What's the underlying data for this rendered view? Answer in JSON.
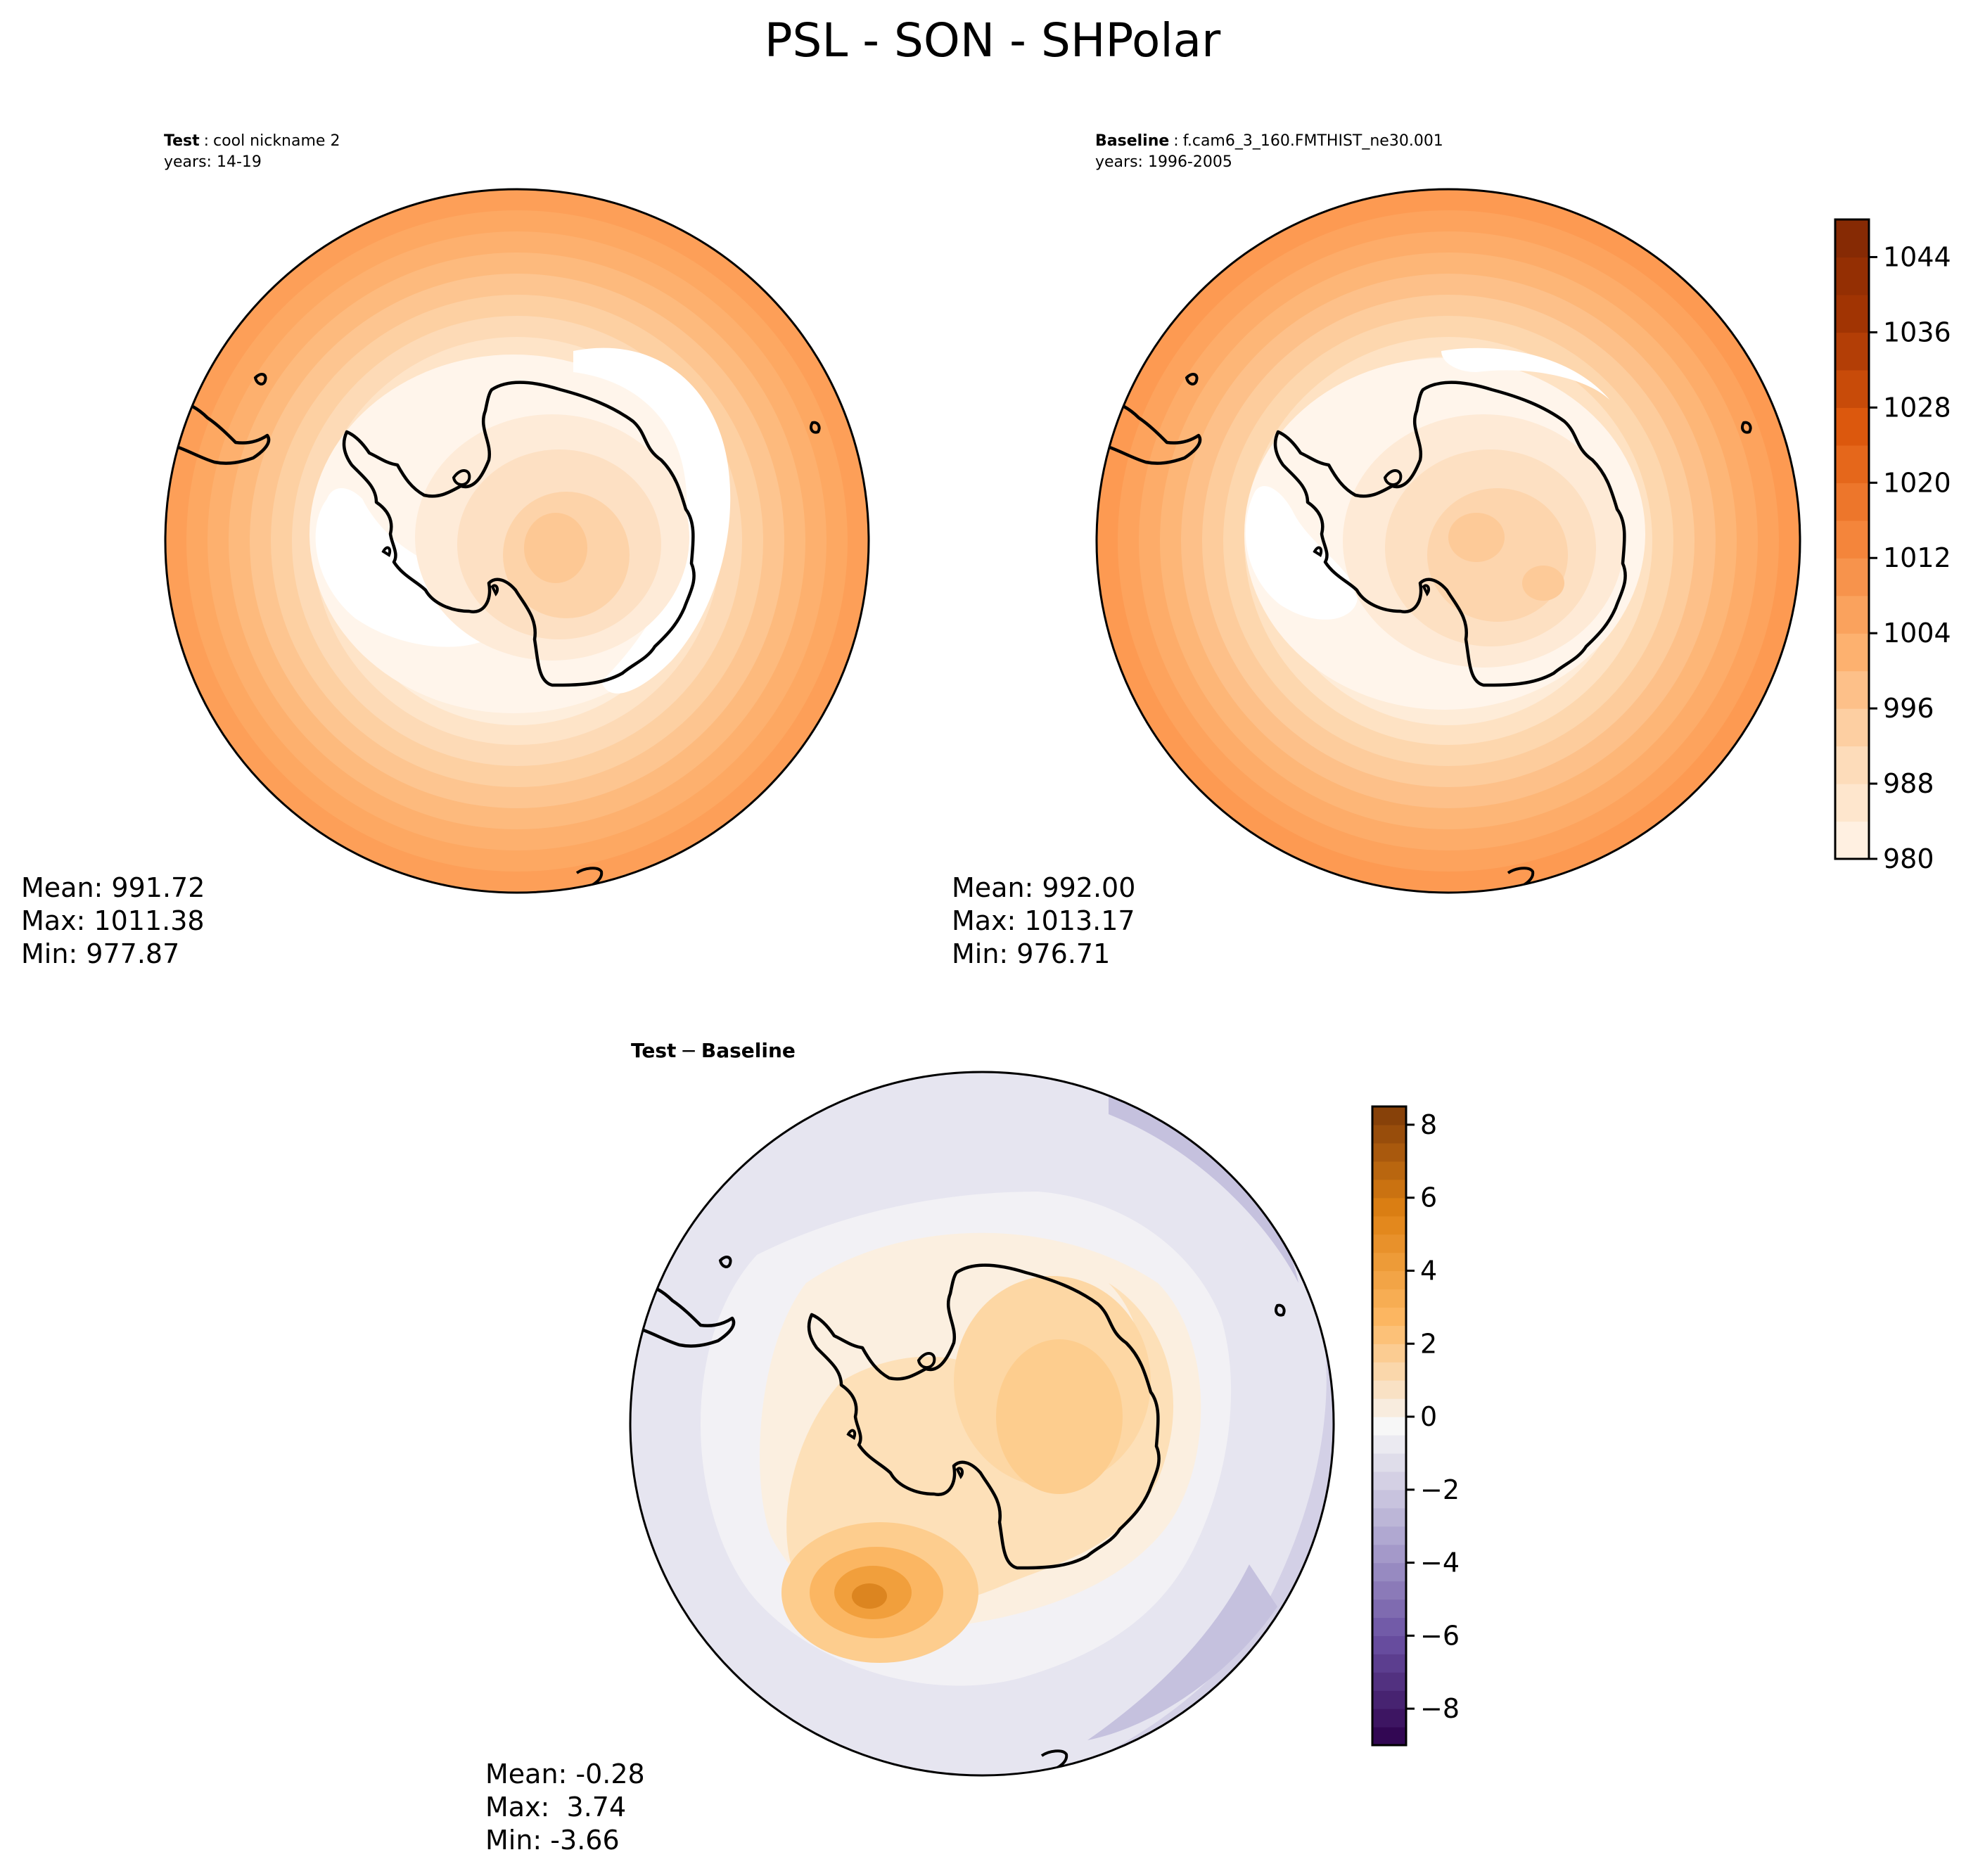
{
  "figure": {
    "title": "PSL - SON - SHPolar"
  },
  "chart_data": [
    {
      "type": "heatmap",
      "projection": "south-polar-stereographic",
      "panel_label": "Test",
      "panel_name": "cool nickname 2",
      "years": "years: 14-19",
      "stats": {
        "mean": "Mean: 991.72",
        "max": "Max: 1011.38",
        "min": "Min: 977.87"
      },
      "colormap": "Oranges",
      "field_range": [
        977.87,
        1011.38
      ]
    },
    {
      "type": "heatmap",
      "projection": "south-polar-stereographic",
      "panel_label": "Baseline",
      "panel_name": "f.cam6_3_160.FMTHIST_ne30.001",
      "years": "years: 1996-2005",
      "stats": {
        "mean": "Mean: 992.00",
        "max": "Max: 1013.17",
        "min": "Min: 976.71"
      },
      "colormap": "Oranges",
      "field_range": [
        976.71,
        1013.17
      ],
      "colorbar": {
        "vmin": 980,
        "vmax": 1048,
        "step": 4,
        "ticks": [
          980,
          988,
          996,
          1004,
          1012,
          1020,
          1028,
          1036,
          1044
        ],
        "tick_labels": [
          "980",
          "988",
          "996",
          "1004",
          "1012",
          "1020",
          "1028",
          "1036",
          "1044"
        ],
        "colors": [
          "#fff5eb",
          "#fdd9b3",
          "#fdae6b",
          "#f4853b",
          "#df5a0e",
          "#a63603",
          "#7f2704"
        ]
      }
    },
    {
      "type": "heatmap",
      "projection": "south-polar-stereographic",
      "panel_label": "Test",
      "panel_label_2": "Baseline",
      "stats": {
        "mean": "Mean: -0.28",
        "max": "Max:  3.74",
        "min": "Min: -3.66"
      },
      "colormap": "PuOr_r",
      "field_range": [
        -3.66,
        3.74
      ],
      "colorbar": {
        "vmin": -9,
        "vmax": 8.5,
        "step": 0.5,
        "ticks": [
          -8,
          -6,
          -4,
          -2,
          0,
          2,
          4,
          6,
          8
        ],
        "tick_labels": [
          "−8",
          "−6",
          "−4",
          "−2",
          "0",
          "2",
          "4",
          "6",
          "8"
        ],
        "colors": [
          "#2d004b",
          "#6a51a3",
          "#b2abd2",
          "#f7f7f7",
          "#fdb863",
          "#e08214",
          "#7f3b08"
        ],
        "color_range": [
          -9,
          8.5
        ]
      }
    }
  ]
}
